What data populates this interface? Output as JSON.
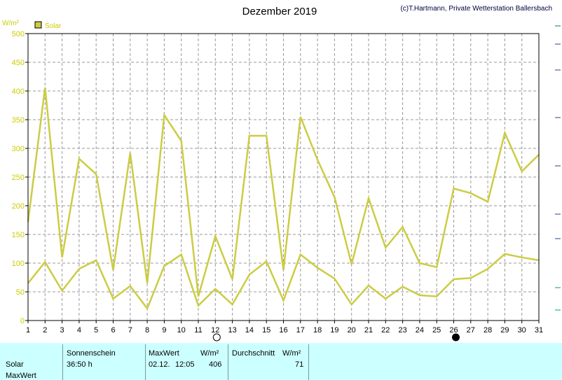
{
  "header": {
    "title": "Dezember 2019",
    "credit": "(c)T.Hartmann, Private Wetterstation Ballersbach",
    "y_unit": "W/m²",
    "legend_label": "Solar"
  },
  "chart_data": {
    "type": "line",
    "x": [
      1,
      2,
      3,
      4,
      5,
      6,
      7,
      8,
      9,
      10,
      11,
      12,
      13,
      14,
      15,
      16,
      17,
      18,
      19,
      20,
      21,
      22,
      23,
      24,
      25,
      26,
      27,
      28,
      29,
      30,
      31
    ],
    "x_ticks": [
      "1",
      "2",
      "3",
      "4",
      "5",
      "6",
      "7",
      "8",
      "9",
      "10",
      "11",
      "12",
      "13",
      "14",
      "15",
      "16",
      "17",
      "18",
      "19",
      "20",
      "21",
      "22",
      "23",
      "24",
      "25",
      "26",
      "27",
      "28",
      "29",
      "30",
      "31"
    ],
    "ylim": [
      0,
      500
    ],
    "y_ticks": [
      0,
      50,
      100,
      150,
      200,
      250,
      300,
      350,
      400,
      450,
      500
    ],
    "grid": true,
    "legend": "top-left",
    "series_color": "#cccc44",
    "series": [
      {
        "name": "Solar",
        "values": [
          172,
          406,
          110,
          282,
          255,
          88,
          292,
          65,
          358,
          313,
          42,
          147,
          72,
          322,
          322,
          88,
          355,
          280,
          215,
          98,
          213,
          127,
          163,
          100,
          93,
          230,
          222,
          207,
          327,
          260,
          289
        ]
      },
      {
        "name": "",
        "values": [
          65,
          102,
          52,
          90,
          105,
          38,
          60,
          21,
          95,
          115,
          26,
          55,
          28,
          80,
          103,
          35,
          115,
          92,
          73,
          28,
          61,
          38,
          59,
          44,
          42,
          72,
          74,
          90,
          116,
          110,
          105
        ]
      }
    ],
    "markers": {
      "full_moon_day": "12",
      "new_moon_day": "26"
    }
  },
  "info_table": {
    "row_label_1": "Solar",
    "row_label_2": "MaxWert",
    "sunshine_header": "Sonnenschein",
    "sunshine_value": "36:50 h",
    "max_header": "MaxWert",
    "max_unit": "W/m²",
    "max_date": "02.12.",
    "max_time": "12:05",
    "max_value": "406",
    "avg_header": "Durchschnitt",
    "avg_unit": "W/m²",
    "avg_value": "71"
  }
}
